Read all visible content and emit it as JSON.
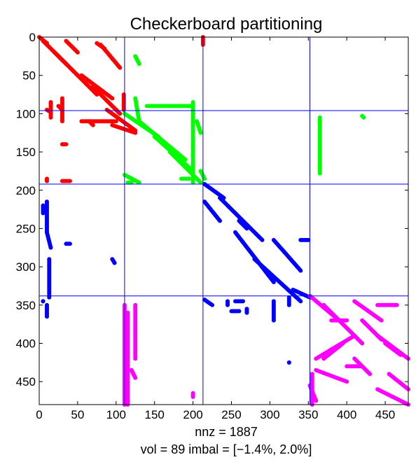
{
  "chart_data": {
    "type": "scatter",
    "title": "Checkerboard partitioning",
    "xlabel": "nnz = 1887",
    "caption": "vol = 89  imbal = [−1.4%, 2.0%]",
    "xlim": [
      0,
      480
    ],
    "ylim": [
      0,
      480
    ],
    "y_reversed": true,
    "x_ticks": [
      0,
      50,
      100,
      150,
      200,
      250,
      300,
      350,
      400,
      450
    ],
    "y_ticks": [
      0,
      50,
      100,
      150,
      200,
      250,
      300,
      350,
      400,
      450
    ],
    "grid": false,
    "partition_lines": {
      "color": "#0000ff",
      "columns": [
        111,
        213,
        352
      ],
      "rows": [
        96,
        192,
        338
      ]
    },
    "series": [
      {
        "color": "#ff0000",
        "segments": [
          [
            0,
            0,
            10,
            8
          ],
          [
            5,
            5,
            35,
            35
          ],
          [
            20,
            20,
            75,
            75
          ],
          [
            55,
            50,
            95,
            80
          ],
          [
            70,
            65,
            105,
            100
          ],
          [
            88,
            95,
            125,
            122
          ],
          [
            95,
            115,
            125,
            125
          ],
          [
            35,
            5,
            50,
            20
          ],
          [
            80,
            10,
            105,
            40
          ],
          [
            75,
            8,
            85,
            15
          ],
          [
            30,
            80,
            30,
            110
          ],
          [
            15,
            85,
            15,
            105
          ],
          [
            25,
            90,
            30,
            95
          ],
          [
            10,
            95,
            15,
            98
          ],
          [
            55,
            110,
            100,
            110
          ],
          [
            10,
            185,
            10,
            188
          ],
          [
            30,
            188,
            40,
            188
          ],
          [
            30,
            140,
            35,
            140
          ],
          [
            110,
            75,
            110,
            95
          ],
          [
            213,
            0,
            213,
            10
          ],
          [
            65,
            110,
            70,
            115
          ]
        ]
      },
      {
        "color": "#00ff00",
        "segments": [
          [
            111,
            100,
            155,
            130
          ],
          [
            130,
            110,
            190,
            160
          ],
          [
            150,
            130,
            200,
            175
          ],
          [
            170,
            150,
            210,
            190
          ],
          [
            140,
            90,
            200,
            90
          ],
          [
            185,
            185,
            195,
            185
          ],
          [
            111,
            180,
            130,
            190
          ],
          [
            115,
            190,
            120,
            190
          ],
          [
            125,
            25,
            130,
            35
          ],
          [
            125,
            80,
            130,
            110
          ],
          [
            200,
            85,
            200,
            190
          ],
          [
            210,
            175,
            215,
            185
          ],
          [
            365,
            105,
            365,
            178
          ],
          [
            420,
            103,
            422,
            105
          ],
          [
            205,
            110,
            210,
            125
          ]
        ]
      },
      {
        "color": "#0000ff",
        "segments": [
          [
            215,
            192,
            240,
            210
          ],
          [
            235,
            210,
            290,
            265
          ],
          [
            255,
            255,
            305,
            320
          ],
          [
            280,
            290,
            340,
            345
          ],
          [
            305,
            265,
            340,
            305
          ],
          [
            330,
            330,
            352,
            340
          ],
          [
            215,
            215,
            235,
            240
          ],
          [
            260,
            240,
            270,
            250
          ],
          [
            340,
            265,
            350,
            265
          ],
          [
            10,
            215,
            10,
            255
          ],
          [
            5,
            220,
            5,
            230
          ],
          [
            13,
            290,
            13,
            340
          ],
          [
            10,
            255,
            15,
            275
          ],
          [
            35,
            270,
            40,
            270
          ],
          [
            5,
            345,
            5,
            345
          ],
          [
            10,
            350,
            10,
            365
          ],
          [
            95,
            290,
            98,
            295
          ],
          [
            215,
            343,
            225,
            350
          ],
          [
            245,
            345,
            245,
            350
          ],
          [
            255,
            345,
            265,
            345
          ],
          [
            250,
            358,
            260,
            358
          ],
          [
            270,
            355,
            270,
            360
          ],
          [
            305,
            345,
            305,
            370
          ],
          [
            325,
            340,
            325,
            350
          ],
          [
            325,
            425,
            325,
            425
          ]
        ]
      },
      {
        "color": "#ff00ff",
        "segments": [
          [
            352,
            338,
            390,
            370
          ],
          [
            370,
            350,
            420,
            400
          ],
          [
            410,
            345,
            445,
            370
          ],
          [
            420,
            370,
            445,
            395
          ],
          [
            440,
            390,
            480,
            420
          ],
          [
            450,
            400,
            470,
            415
          ],
          [
            455,
            440,
            480,
            460
          ],
          [
            440,
            460,
            480,
            480
          ],
          [
            360,
            420,
            410,
            390
          ],
          [
            370,
            420,
            395,
            400
          ],
          [
            380,
            370,
            400,
            370
          ],
          [
            400,
            430,
            420,
            430
          ],
          [
            440,
            350,
            465,
            350
          ],
          [
            360,
            435,
            400,
            450
          ],
          [
            352,
            455,
            360,
            475
          ],
          [
            355,
            440,
            355,
            480
          ],
          [
            410,
            420,
            430,
            440
          ],
          [
            111,
            350,
            111,
            480
          ],
          [
            115,
            360,
            115,
            480
          ],
          [
            125,
            350,
            125,
            420
          ],
          [
            120,
            435,
            125,
            445
          ],
          [
            200,
            465,
            200,
            470
          ]
        ]
      }
    ]
  }
}
